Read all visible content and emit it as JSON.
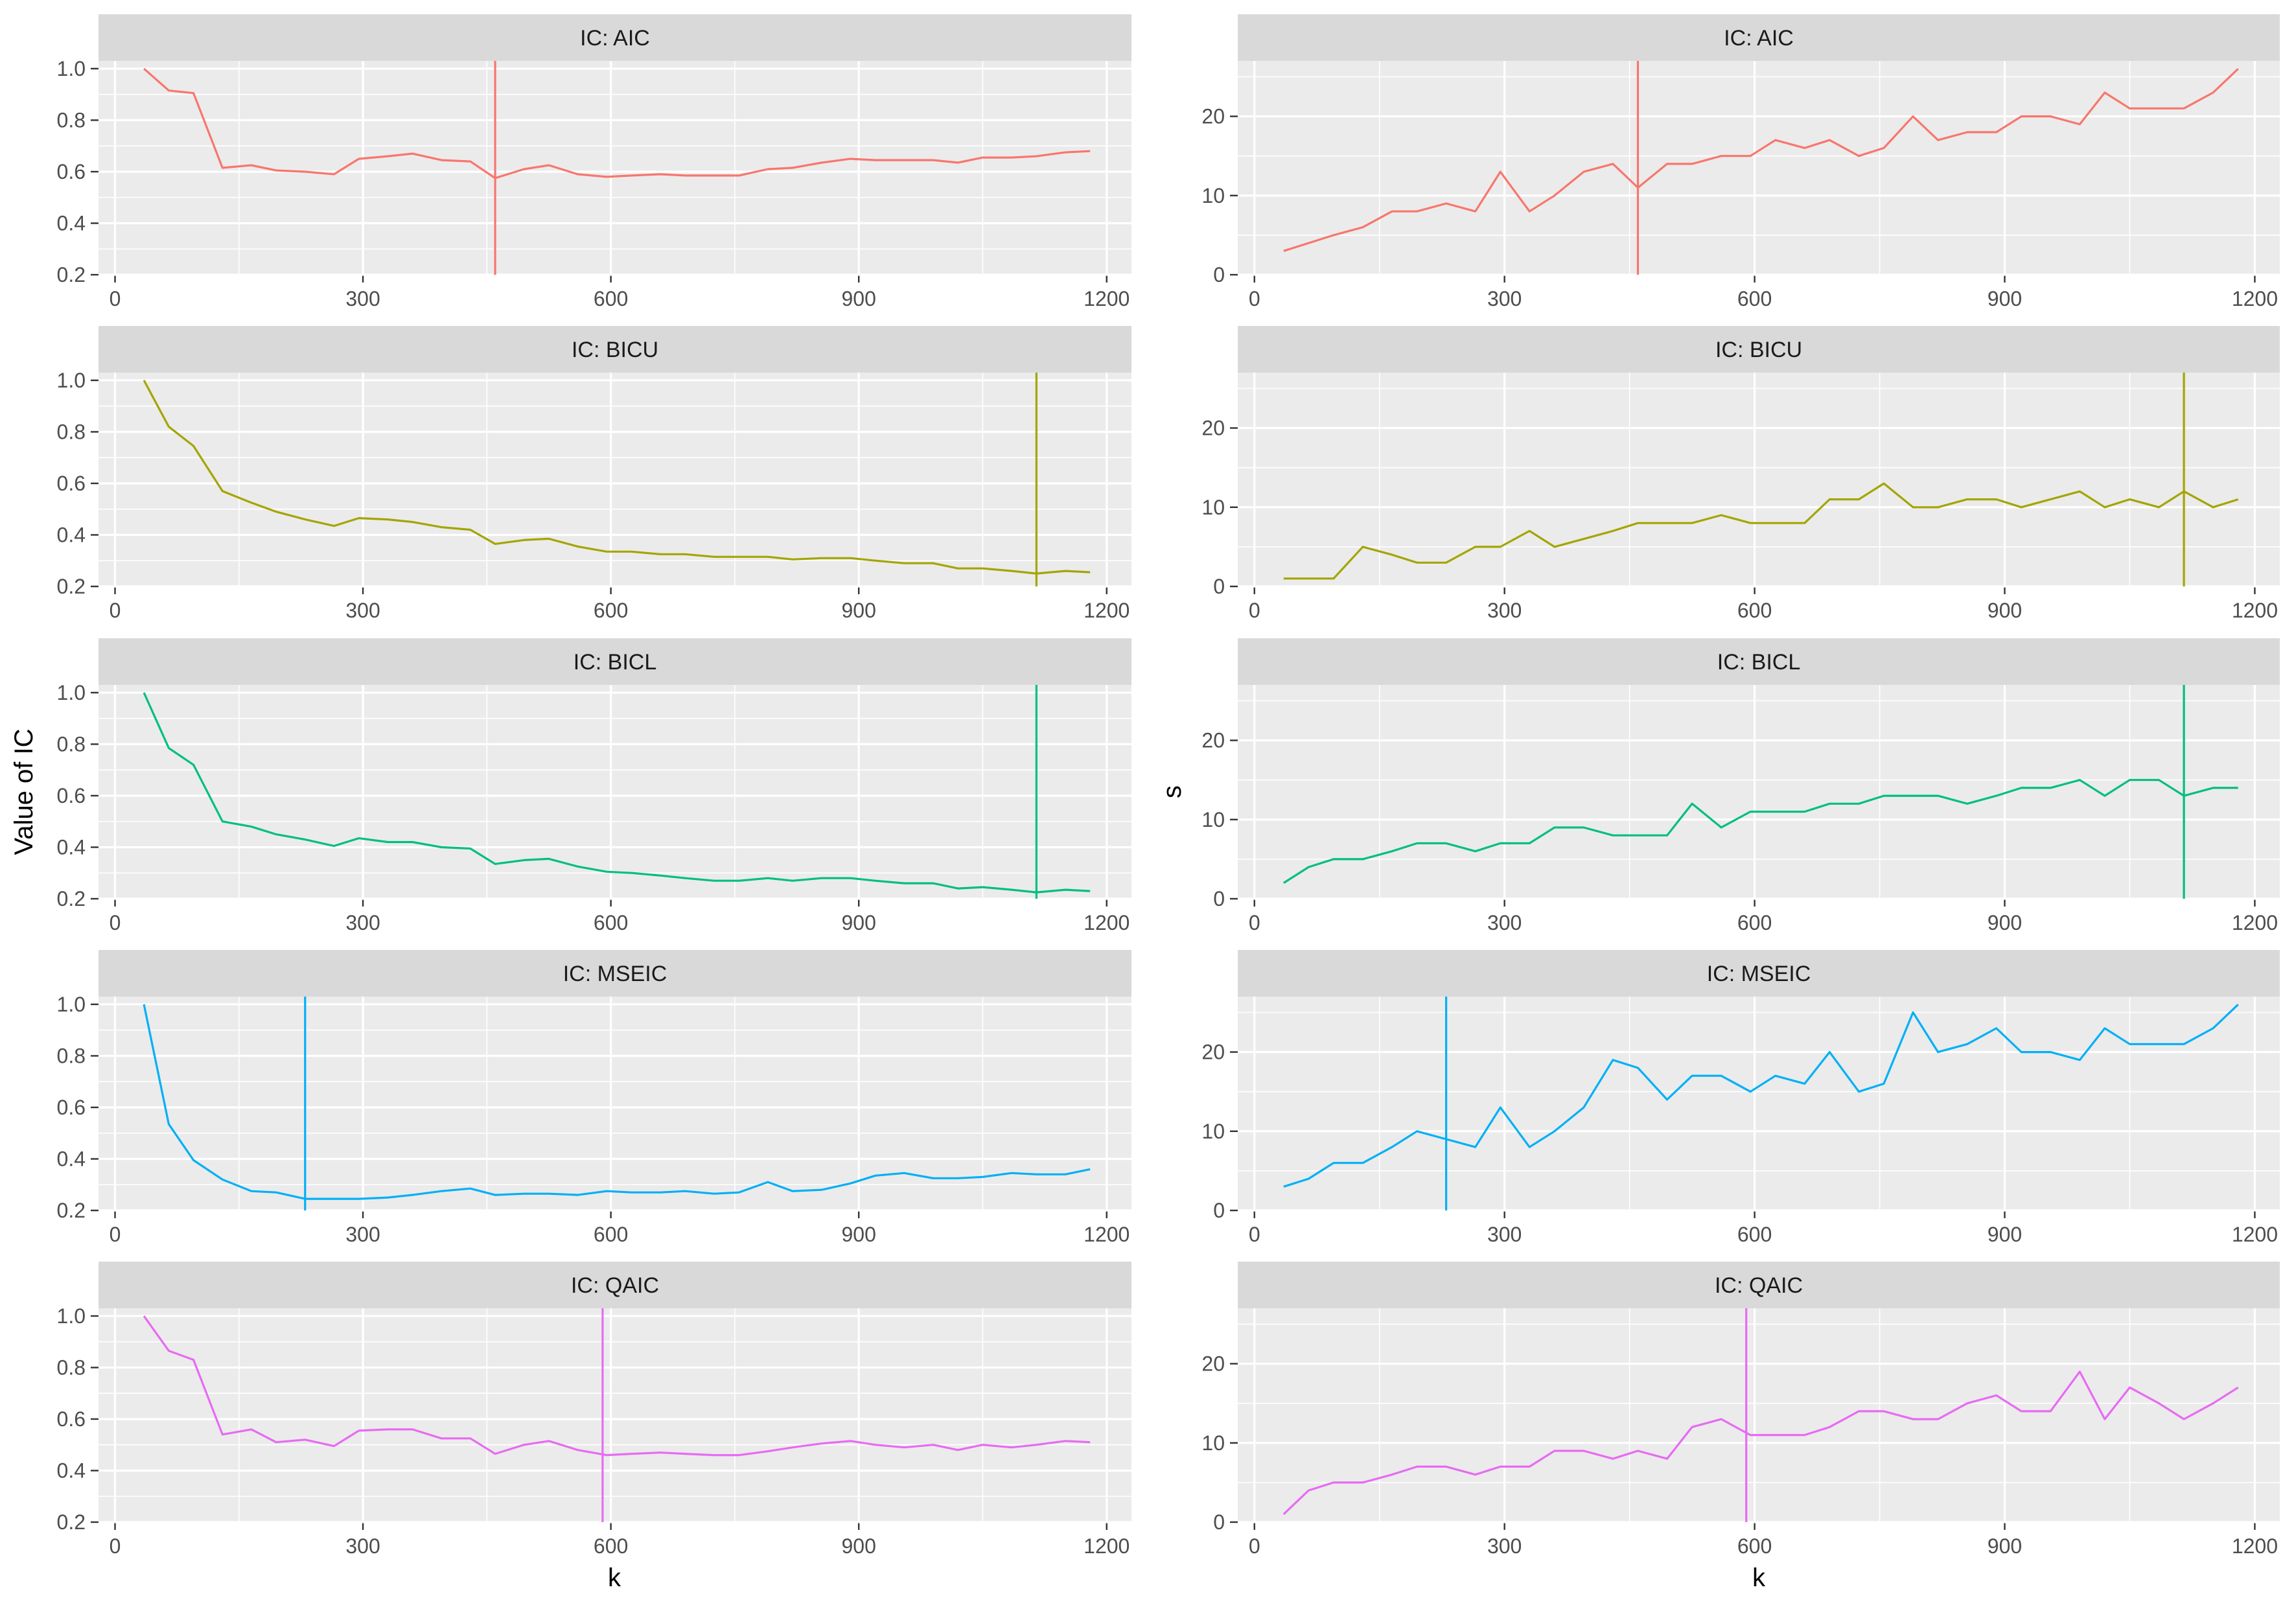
{
  "chart_data": {
    "type": "line",
    "layout": "faceted grid, 5 rows x 2 columns",
    "x_axis_title": "k",
    "left_y_axis_title": "Value of IC",
    "right_y_axis_title": "s",
    "x_ticks": [
      0,
      300,
      600,
      900,
      1200
    ],
    "x_range": [
      -20,
      1230
    ],
    "left_y_ticks": [
      "0.2",
      "0.4",
      "0.6",
      "0.8",
      "1.0"
    ],
    "left_y_range": [
      0.2,
      1.03
    ],
    "right_y_ticks": [
      "0",
      "10",
      "20"
    ],
    "right_y_range": [
      0,
      27
    ],
    "colors": {
      "AIC": "#F8766D",
      "BICU": "#A3A500",
      "BICL": "#00BF7D",
      "MSEIC": "#00B0F6",
      "QAIC": "#E76BF3",
      "panel_background": "#EBEBEB",
      "strip_background": "#D9D9D9",
      "grid_line": "#FFFFFF"
    },
    "k": [
      35,
      65,
      95,
      130,
      165,
      195,
      230,
      265,
      295,
      330,
      360,
      395,
      430,
      460,
      495,
      525,
      560,
      595,
      625,
      660,
      690,
      725,
      755,
      790,
      820,
      855,
      890,
      920,
      955,
      990,
      1020,
      1050,
      1085,
      1115,
      1150,
      1180
    ],
    "panels": [
      {
        "ic": "AIC",
        "strip_label": "IC: AIC",
        "selected_k": 460,
        "ic_values": [
          1.0,
          0.915,
          0.905,
          0.615,
          0.625,
          0.605,
          0.6,
          0.59,
          0.65,
          0.66,
          0.67,
          0.645,
          0.64,
          0.575,
          0.61,
          0.625,
          0.59,
          0.58,
          0.585,
          0.59,
          0.585,
          0.585,
          0.585,
          0.61,
          0.615,
          0.635,
          0.65,
          0.645,
          0.645,
          0.645,
          0.635,
          0.655,
          0.655,
          0.66,
          0.675,
          0.68
        ],
        "s_values": [
          3,
          4,
          5,
          6,
          8,
          8,
          9,
          8,
          13,
          8,
          10,
          13,
          14,
          11,
          14,
          14,
          15,
          15,
          17,
          16,
          17,
          15,
          16,
          20,
          17,
          18,
          18,
          20,
          20,
          19,
          23,
          21,
          21,
          21,
          23,
          26
        ]
      },
      {
        "ic": "BICU",
        "strip_label": "IC: BICU",
        "selected_k": 1115,
        "ic_values": [
          1.0,
          0.82,
          0.745,
          0.57,
          0.525,
          0.49,
          0.46,
          0.435,
          0.465,
          0.46,
          0.45,
          0.43,
          0.42,
          0.365,
          0.38,
          0.385,
          0.355,
          0.335,
          0.335,
          0.325,
          0.325,
          0.315,
          0.315,
          0.315,
          0.305,
          0.31,
          0.31,
          0.3,
          0.29,
          0.29,
          0.27,
          0.27,
          0.26,
          0.25,
          0.26,
          0.255
        ],
        "s_values": [
          1,
          1,
          1,
          5,
          4,
          3,
          3,
          5,
          5,
          7,
          5,
          6,
          7,
          8,
          8,
          8,
          9,
          8,
          8,
          8,
          11,
          11,
          13,
          10,
          10,
          11,
          11,
          10,
          11,
          12,
          10,
          11,
          10,
          12,
          10,
          11
        ]
      },
      {
        "ic": "BICL",
        "strip_label": "IC: BICL",
        "selected_k": 1115,
        "ic_values": [
          1.0,
          0.785,
          0.72,
          0.5,
          0.48,
          0.45,
          0.43,
          0.405,
          0.435,
          0.42,
          0.42,
          0.4,
          0.395,
          0.335,
          0.35,
          0.355,
          0.325,
          0.305,
          0.3,
          0.29,
          0.28,
          0.27,
          0.27,
          0.28,
          0.27,
          0.28,
          0.28,
          0.27,
          0.26,
          0.26,
          0.24,
          0.245,
          0.235,
          0.225,
          0.235,
          0.23
        ],
        "s_values": [
          2,
          4,
          5,
          5,
          6,
          7,
          7,
          6,
          7,
          7,
          9,
          9,
          8,
          8,
          8,
          12,
          9,
          11,
          11,
          11,
          12,
          12,
          13,
          13,
          13,
          12,
          13,
          14,
          14,
          15,
          13,
          15,
          15,
          13,
          14,
          14
        ]
      },
      {
        "ic": "MSEIC",
        "strip_label": "IC: MSEIC",
        "selected_k": 230,
        "ic_values": [
          1.0,
          0.535,
          0.395,
          0.32,
          0.275,
          0.27,
          0.245,
          0.245,
          0.245,
          0.25,
          0.26,
          0.275,
          0.285,
          0.26,
          0.265,
          0.265,
          0.26,
          0.275,
          0.27,
          0.27,
          0.275,
          0.265,
          0.27,
          0.31,
          0.275,
          0.28,
          0.305,
          0.335,
          0.345,
          0.325,
          0.325,
          0.33,
          0.345,
          0.34,
          0.34,
          0.36
        ],
        "s_values": [
          3,
          4,
          6,
          6,
          8,
          10,
          9,
          8,
          13,
          8,
          10,
          13,
          19,
          18,
          14,
          17,
          17,
          15,
          17,
          16,
          20,
          15,
          16,
          25,
          20,
          21,
          23,
          20,
          20,
          19,
          23,
          21,
          21,
          21,
          23,
          26
        ]
      },
      {
        "ic": "QAIC",
        "strip_label": "IC: QAIC",
        "selected_k": 590,
        "ic_values": [
          1.0,
          0.865,
          0.83,
          0.54,
          0.56,
          0.51,
          0.52,
          0.495,
          0.555,
          0.56,
          0.56,
          0.525,
          0.525,
          0.465,
          0.5,
          0.515,
          0.48,
          0.46,
          0.465,
          0.47,
          0.465,
          0.46,
          0.46,
          0.475,
          0.49,
          0.505,
          0.515,
          0.5,
          0.49,
          0.5,
          0.48,
          0.5,
          0.49,
          0.5,
          0.515,
          0.51
        ],
        "s_values": [
          1,
          4,
          5,
          5,
          6,
          7,
          7,
          6,
          7,
          7,
          9,
          9,
          8,
          9,
          8,
          12,
          13,
          11,
          11,
          11,
          12,
          14,
          14,
          13,
          13,
          15,
          16,
          14,
          14,
          19,
          13,
          17,
          15,
          13,
          15,
          17
        ]
      }
    ]
  }
}
